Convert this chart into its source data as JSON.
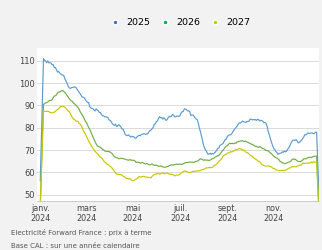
{
  "legend_labels": [
    "2025",
    "2026",
    "2027"
  ],
  "line_colors": [
    "#5b9bd5",
    "#70ad47",
    "#c8c800"
  ],
  "dot_colors": [
    "#4472c4",
    "#00b050",
    "#c8c800"
  ],
  "caption_line1": "Electricité Forward France : prix à terme",
  "caption_line2": "Base CAL : sur une année calendaire",
  "background_color": "#f2f2f2",
  "plot_bg_color": "#ffffff",
  "yticks": [
    50,
    60,
    70,
    80,
    90,
    100,
    110
  ],
  "ylim": [
    47,
    116
  ],
  "n_points": 260,
  "x_tick_labels": [
    "janv.\n2024",
    "mars\n2024",
    "mai\n2024",
    "juil.\n2024",
    "sept.\n2024",
    "nov.\n2024"
  ],
  "x_tick_positions": [
    0,
    43,
    86,
    130,
    174,
    217
  ]
}
